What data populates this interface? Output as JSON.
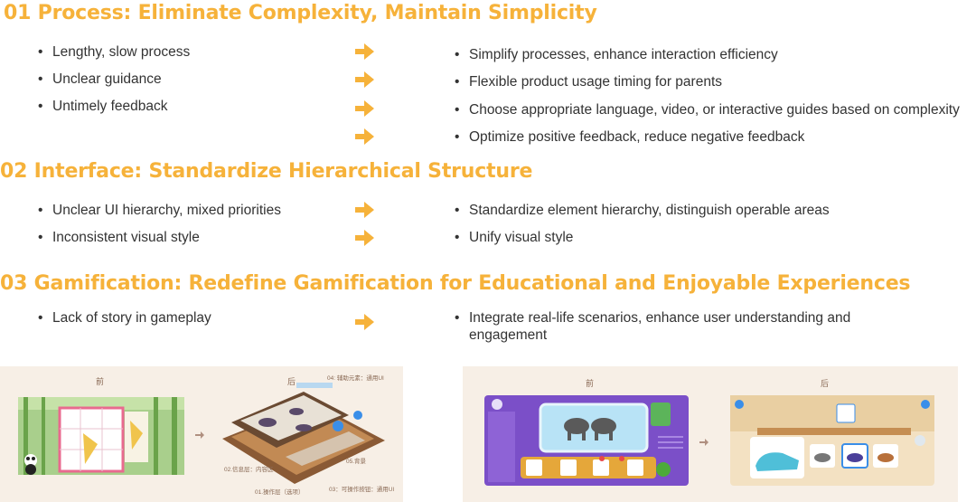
{
  "sections": [
    {
      "title": "01 Process: Eliminate Complexity, Maintain Simplicity",
      "problems": [
        "Lengthy, slow process",
        "Unclear guidance",
        "Untimely feedback"
      ],
      "solutions": [
        "Simplify processes, enhance interaction efficiency",
        "Flexible product usage timing for parents",
        "Choose appropriate language, video, or interactive guides based on complexity",
        "Optimize positive feedback, reduce negative feedback"
      ]
    },
    {
      "title": "02 Interface: Standardize Hierarchical Structure",
      "problems": [
        "Unclear UI hierarchy, mixed priorities",
        "Inconsistent visual style"
      ],
      "solutions": [
        "Standardize element hierarchy, distinguish operable areas",
        "Unify visual style"
      ]
    },
    {
      "title": "03 Gamification: Redefine Gamification for Educational and Enjoyable Experiences",
      "problems": [
        "Lack of story in gameplay"
      ],
      "solutions": [
        "Integrate real-life scenarios, enhance user understanding and engagement"
      ]
    }
  ],
  "bullet_char": "•",
  "figures": {
    "left": {
      "before_label": "前",
      "after_label": "后",
      "annotations": [
        "04: 辅助元素：通用UI",
        "02.信息层：内容区",
        "05.背景",
        "01.操作层（选项）",
        "03：可操作按钮：通用UI"
      ]
    },
    "right": {
      "before_label": "前",
      "after_label": "后"
    }
  },
  "colors": {
    "accent": "#f6b23a",
    "text": "#333333",
    "panel_bg": "#f7efe6",
    "purple": "#7b4fc8"
  }
}
